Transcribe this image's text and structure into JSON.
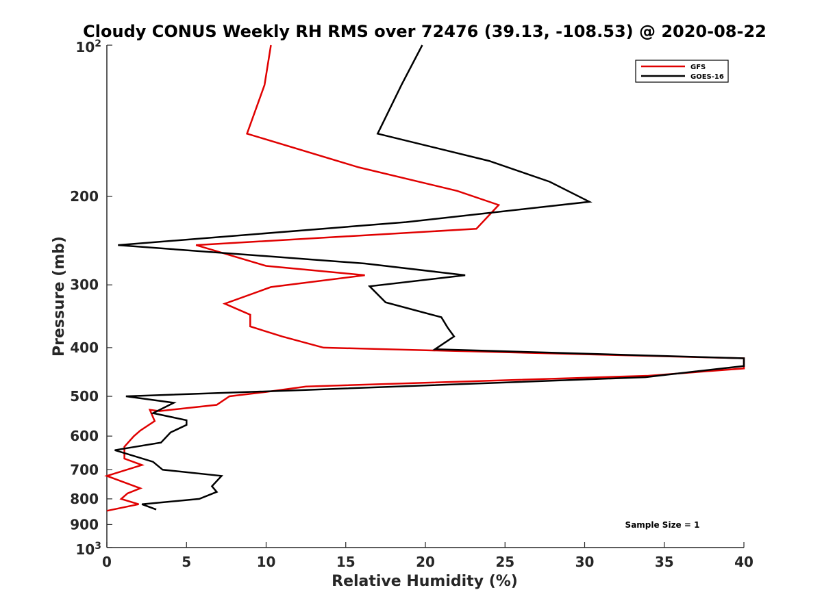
{
  "chart_data": {
    "type": "line",
    "title": "Cloudy CONUS Weekly RH RMS over 72476 (39.13, -108.53) @ 2020-08-22",
    "xlabel": "Relative Humidity (%)",
    "ylabel": "Pressure (mb)",
    "xlim": [
      0,
      40
    ],
    "ylim": [
      100,
      1000
    ],
    "y_scale": "log",
    "y_reversed": true,
    "grid": false,
    "legend_position": "top-right",
    "x_ticks": [
      "0",
      "5",
      "10",
      "15",
      "20",
      "25",
      "30",
      "35",
      "40"
    ],
    "y_ticks": [
      {
        "value": 100,
        "base": "10",
        "exp": "2"
      },
      {
        "value": 200,
        "label": "200"
      },
      {
        "value": 300,
        "label": "300"
      },
      {
        "value": 400,
        "label": "400"
      },
      {
        "value": 500,
        "label": "500"
      },
      {
        "value": 600,
        "label": "600"
      },
      {
        "value": 700,
        "label": "700"
      },
      {
        "value": 800,
        "label": "800"
      },
      {
        "value": 900,
        "label": "900"
      },
      {
        "value": 1000,
        "base": "10",
        "exp": "3"
      }
    ],
    "annotation": "Sample Size = 1",
    "series": [
      {
        "name": "GFS",
        "color": "#e00000",
        "points": [
          [
            10.3,
            100
          ],
          [
            9.9,
            120
          ],
          [
            8.8,
            150
          ],
          [
            15.8,
            175
          ],
          [
            22.0,
            195
          ],
          [
            24.6,
            208
          ],
          [
            23.2,
            232
          ],
          [
            5.6,
            250
          ],
          [
            10.0,
            275
          ],
          [
            16.2,
            287
          ],
          [
            10.3,
            303
          ],
          [
            7.4,
            327
          ],
          [
            9.0,
            344
          ],
          [
            9.0,
            363
          ],
          [
            11.0,
            380
          ],
          [
            13.6,
            400
          ],
          [
            40,
            420
          ],
          [
            40,
            440
          ],
          [
            34.0,
            455
          ],
          [
            12.5,
            478
          ],
          [
            10.0,
            490
          ],
          [
            7.7,
            500
          ],
          [
            6.9,
            520
          ],
          [
            3.3,
            535
          ],
          [
            2.7,
            532
          ],
          [
            3.0,
            560
          ],
          [
            2.1,
            585
          ],
          [
            1.7,
            600
          ],
          [
            1.1,
            630
          ],
          [
            1.1,
            665
          ],
          [
            2.2,
            685
          ],
          [
            0.0,
            720
          ],
          [
            2.1,
            762
          ],
          [
            1.3,
            780
          ],
          [
            0.9,
            800
          ],
          [
            2.0,
            820
          ],
          [
            0.0,
            845
          ]
        ]
      },
      {
        "name": "GOES-16",
        "color": "#000000",
        "points": [
          [
            19.8,
            100
          ],
          [
            18.5,
            120
          ],
          [
            17.0,
            150
          ],
          [
            24.0,
            170
          ],
          [
            27.8,
            187
          ],
          [
            30.3,
            205
          ],
          [
            18.8,
            225
          ],
          [
            0.7,
            250
          ],
          [
            16.2,
            272
          ],
          [
            22.5,
            287
          ],
          [
            16.5,
            302
          ],
          [
            17.5,
            325
          ],
          [
            21.0,
            348
          ],
          [
            21.4,
            365
          ],
          [
            21.8,
            380
          ],
          [
            20.6,
            403
          ],
          [
            40,
            420
          ],
          [
            40,
            435
          ],
          [
            33.8,
            458
          ],
          [
            11.5,
            487
          ],
          [
            1.2,
            500
          ],
          [
            4.2,
            515
          ],
          [
            2.9,
            540
          ],
          [
            5.0,
            558
          ],
          [
            5.0,
            570
          ],
          [
            4.0,
            590
          ],
          [
            3.4,
            618
          ],
          [
            0.5,
            640
          ],
          [
            2.9,
            675
          ],
          [
            3.5,
            700
          ],
          [
            7.2,
            720
          ],
          [
            6.6,
            755
          ],
          [
            6.9,
            775
          ],
          [
            5.8,
            800
          ],
          [
            2.2,
            820
          ],
          [
            3.1,
            840
          ]
        ]
      }
    ]
  }
}
